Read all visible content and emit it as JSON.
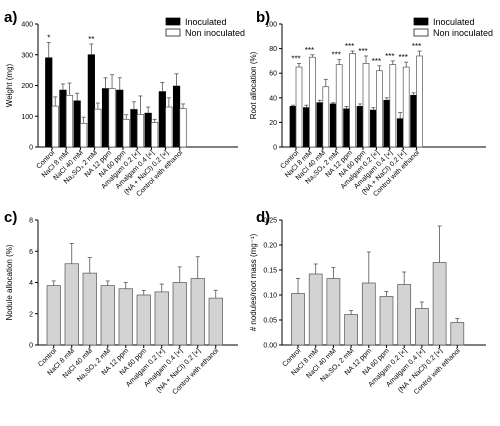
{
  "categories": [
    "Control",
    "NaCl 8 mM",
    "NaCl 40 mM",
    "Na₂SO₄ 2 mM",
    "NA 12 ppm",
    "NA 60 ppm",
    "Amalgam 0.2 [×]",
    "Amalgam 0.4 [×]",
    "(NA + NaCl) 0.2 [×]",
    "Control with ethanol"
  ],
  "legend": {
    "inoculated": "Inoculated",
    "non_inoculated": "Non inoculated"
  },
  "colors": {
    "inoculated": "#000000",
    "non_inoculated": "#ffffff",
    "single": "#d3d3d3"
  },
  "chart_data": [
    {
      "panel": "a)",
      "type": "bar",
      "ylabel": "Weight (mg)",
      "ylim": [
        0,
        400
      ],
      "yticks": [
        0,
        100,
        200,
        300,
        400
      ],
      "legend_position": "top-right",
      "series": [
        {
          "name": "Inoculated",
          "values": [
            290,
            185,
            150,
            300,
            190,
            185,
            122,
            110,
            180,
            198
          ],
          "errors": [
            50,
            20,
            25,
            35,
            35,
            40,
            25,
            20,
            30,
            40
          ]
        },
        {
          "name": "Non inoculated",
          "values": [
            133,
            168,
            77,
            123,
            190,
            90,
            106,
            80,
            130,
            125
          ],
          "errors": [
            30,
            40,
            20,
            20,
            45,
            15,
            60,
            10,
            30,
            15
          ]
        }
      ],
      "annotations": [
        {
          "index": 0,
          "series": 0,
          "text": "*"
        },
        {
          "index": 3,
          "series": 0,
          "text": "**"
        }
      ]
    },
    {
      "panel": "b)",
      "type": "bar",
      "ylabel": "Root allocation (%)",
      "ylim": [
        0,
        100
      ],
      "yticks": [
        0,
        20,
        40,
        60,
        80,
        100
      ],
      "legend_position": "top-right",
      "series": [
        {
          "name": "Inoculated",
          "values": [
            33,
            32,
            36,
            35,
            31,
            33,
            30,
            38,
            23,
            42
          ],
          "errors": [
            1,
            2,
            2,
            1,
            2,
            2,
            2,
            2,
            5,
            2
          ]
        },
        {
          "name": "Non inoculated",
          "values": [
            65,
            73,
            49,
            67,
            76,
            68,
            62,
            67,
            65,
            74
          ],
          "errors": [
            3,
            2,
            6,
            4,
            2,
            6,
            4,
            3,
            4,
            4
          ]
        }
      ],
      "annotations": [
        {
          "index": 0,
          "text": "***"
        },
        {
          "index": 1,
          "text": "***"
        },
        {
          "index": 3,
          "text": "***"
        },
        {
          "index": 4,
          "text": "***"
        },
        {
          "index": 5,
          "text": "***"
        },
        {
          "index": 6,
          "text": "***"
        },
        {
          "index": 7,
          "text": "***"
        },
        {
          "index": 8,
          "text": "***"
        },
        {
          "index": 9,
          "text": "***"
        }
      ]
    },
    {
      "panel": "c)",
      "type": "bar",
      "ylabel": "Nodule allocation (%)",
      "ylim": [
        0,
        8
      ],
      "yticks": [
        0,
        2,
        4,
        6,
        8
      ],
      "series": [
        {
          "name": "",
          "values": [
            3.8,
            5.2,
            4.6,
            3.8,
            3.6,
            3.2,
            3.4,
            4.0,
            4.25,
            3.0
          ],
          "errors": [
            0.3,
            1.3,
            1.0,
            0.3,
            0.4,
            0.3,
            0.5,
            1.0,
            1.4,
            0.5
          ]
        }
      ]
    },
    {
      "panel": "d)",
      "type": "bar",
      "ylabel": "# nodules/root mass (mg⁻¹)",
      "ylim": [
        0,
        0.25
      ],
      "yticks": [
        0.0,
        0.05,
        0.1,
        0.15,
        0.2,
        0.25
      ],
      "ytick_labels": [
        "0.00",
        "0.05",
        "0.10",
        "0.15",
        "0.20",
        "0.25"
      ],
      "series": [
        {
          "name": "",
          "values": [
            0.103,
            0.142,
            0.133,
            0.061,
            0.124,
            0.097,
            0.121,
            0.073,
            0.165,
            0.045
          ],
          "errors": [
            0.03,
            0.02,
            0.022,
            0.008,
            0.062,
            0.01,
            0.025,
            0.013,
            0.073,
            0.008
          ]
        }
      ]
    }
  ]
}
